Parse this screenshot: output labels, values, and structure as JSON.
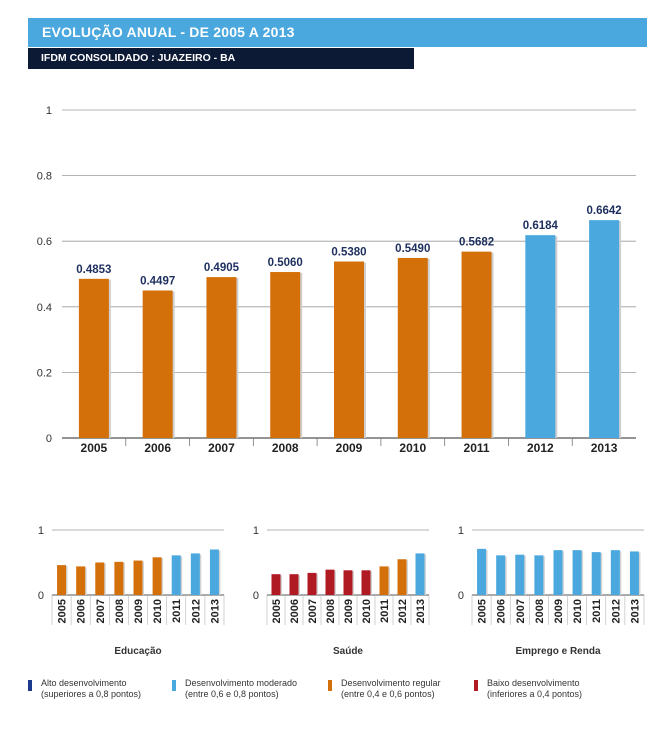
{
  "header": {
    "title": "EVOLUÇÃO ANUAL - DE 2005 A 2013",
    "subtitle": "IFDM CONSOLIDADO : JUAZEIRO - BA"
  },
  "colors": {
    "alto": "#1c3a8c",
    "moderado": "#4aa8df",
    "regular": "#d4700a",
    "baixo": "#b01a22",
    "title_bg": "#4aa8df",
    "subtitle_bg": "#0d1a35"
  },
  "chart_data": [
    {
      "type": "bar",
      "title": "IFDM CONSOLIDADO : JUAZEIRO - BA",
      "categories": [
        "2005",
        "2006",
        "2007",
        "2008",
        "2009",
        "2010",
        "2011",
        "2012",
        "2013"
      ],
      "values": [
        0.4853,
        0.4497,
        0.4905,
        0.506,
        0.538,
        0.549,
        0.5682,
        0.6184,
        0.6642
      ],
      "value_labels": [
        "0.4853",
        "0.4497",
        "0.4905",
        "0.5060",
        "0.5380",
        "0.5490",
        "0.5682",
        "0.6184",
        "0.6642"
      ],
      "yticks": [
        0,
        0.2,
        0.4,
        0.6,
        0.8,
        1
      ],
      "ytick_labels": [
        "0",
        "0.2",
        "0.4",
        "0.6",
        "0.8",
        "1"
      ],
      "ylim": [
        0,
        1
      ],
      "xlabel": "",
      "ylabel": ""
    },
    {
      "type": "bar",
      "title": "Educação",
      "categories": [
        "2005",
        "2006",
        "2007",
        "2008",
        "2009",
        "2010",
        "2011",
        "2012",
        "2013"
      ],
      "values": [
        0.46,
        0.44,
        0.5,
        0.51,
        0.53,
        0.58,
        0.61,
        0.64,
        0.7
      ],
      "yticks": [
        0,
        1
      ],
      "ytick_labels": [
        "0",
        "1"
      ],
      "ylim": [
        0,
        1
      ]
    },
    {
      "type": "bar",
      "title": "Saúde",
      "categories": [
        "2005",
        "2006",
        "2007",
        "2008",
        "2009",
        "2010",
        "2011",
        "2012",
        "2013"
      ],
      "values": [
        0.32,
        0.32,
        0.34,
        0.39,
        0.38,
        0.38,
        0.44,
        0.55,
        0.64
      ],
      "yticks": [
        0,
        1
      ],
      "ytick_labels": [
        "0",
        "1"
      ],
      "ylim": [
        0,
        1
      ]
    },
    {
      "type": "bar",
      "title": "Emprego e Renda",
      "categories": [
        "2005",
        "2006",
        "2007",
        "2008",
        "2009",
        "2010",
        "2011",
        "2012",
        "2013"
      ],
      "values": [
        0.71,
        0.61,
        0.62,
        0.61,
        0.69,
        0.69,
        0.66,
        0.69,
        0.67
      ],
      "yticks": [
        0,
        1
      ],
      "ytick_labels": [
        "0",
        "1"
      ],
      "ylim": [
        0,
        1
      ]
    }
  ],
  "legend": [
    {
      "key": "alto",
      "line1": "Alto desenvolvimento",
      "line2": "(superiores a 0,8 pontos)"
    },
    {
      "key": "moderado",
      "line1": "Desenvolvimento moderado",
      "line2": "(entre 0,6 e 0,8 pontos)"
    },
    {
      "key": "regular",
      "line1": "Desenvolvimento regular",
      "line2": "(entre 0,4 e 0,6 pontos)"
    },
    {
      "key": "baixo",
      "line1": "Baixo desenvolvimento",
      "line2": "(inferiores a 0,4 pontos)"
    }
  ]
}
